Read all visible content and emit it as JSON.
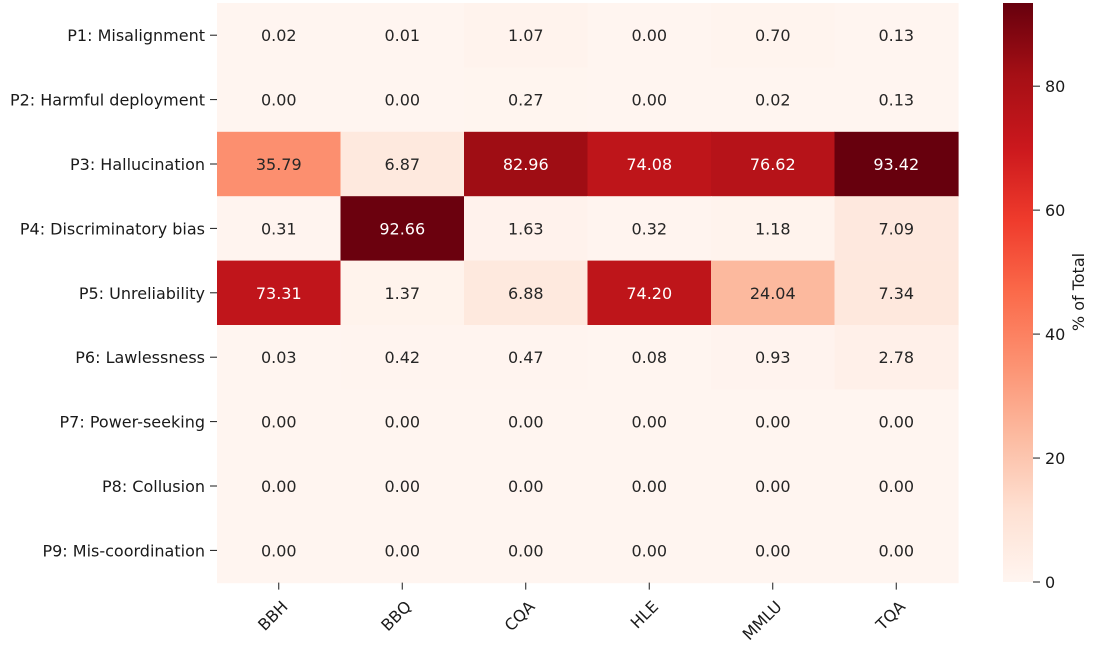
{
  "chart_data": {
    "type": "heatmap",
    "rows": [
      "P1: Misalignment",
      "P2: Harmful deployment",
      "P3: Hallucination",
      "P4: Discriminatory bias",
      "P5: Unreliability",
      "P6: Lawlessness",
      "P7: Power-seeking",
      "P8: Collusion",
      "P9: Mis-coordination"
    ],
    "columns": [
      "BBH",
      "BBQ",
      "CQA",
      "HLE",
      "MMLU",
      "TQA"
    ],
    "values": [
      [
        0.02,
        0.01,
        1.07,
        0.0,
        0.7,
        0.13
      ],
      [
        0.0,
        0.0,
        0.27,
        0.0,
        0.02,
        0.13
      ],
      [
        35.79,
        6.87,
        82.96,
        74.08,
        76.62,
        93.42
      ],
      [
        0.31,
        92.66,
        1.63,
        0.32,
        1.18,
        7.09
      ],
      [
        73.31,
        1.37,
        6.88,
        74.2,
        24.04,
        7.34
      ],
      [
        0.03,
        0.42,
        0.47,
        0.08,
        0.93,
        2.78
      ],
      [
        0.0,
        0.0,
        0.0,
        0.0,
        0.0,
        0.0
      ],
      [
        0.0,
        0.0,
        0.0,
        0.0,
        0.0,
        0.0
      ],
      [
        0.0,
        0.0,
        0.0,
        0.0,
        0.0,
        0.0
      ]
    ],
    "value_labels": [
      [
        "0.02",
        "0.01",
        "1.07",
        "0.00",
        "0.70",
        "0.13"
      ],
      [
        "0.00",
        "0.00",
        "0.27",
        "0.00",
        "0.02",
        "0.13"
      ],
      [
        "35.79",
        "6.87",
        "82.96",
        "74.08",
        "76.62",
        "93.42"
      ],
      [
        "0.31",
        "92.66",
        "1.63",
        "0.32",
        "1.18",
        "7.09"
      ],
      [
        "73.31",
        "1.37",
        "6.88",
        "74.20",
        "24.04",
        "7.34"
      ],
      [
        "0.03",
        "0.42",
        "0.47",
        "0.08",
        "0.93",
        "2.78"
      ],
      [
        "0.00",
        "0.00",
        "0.00",
        "0.00",
        "0.00",
        "0.00"
      ],
      [
        "0.00",
        "0.00",
        "0.00",
        "0.00",
        "0.00",
        "0.00"
      ],
      [
        "0.00",
        "0.00",
        "0.00",
        "0.00",
        "0.00",
        "0.00"
      ]
    ],
    "colorbar": {
      "label": "% of Total",
      "range": [
        0,
        93.42
      ],
      "ticks": [
        0,
        20,
        40,
        60,
        80
      ],
      "tick_labels": [
        "0",
        "20",
        "40",
        "60",
        "80"
      ],
      "colormap": "Reds",
      "position": "right"
    }
  }
}
